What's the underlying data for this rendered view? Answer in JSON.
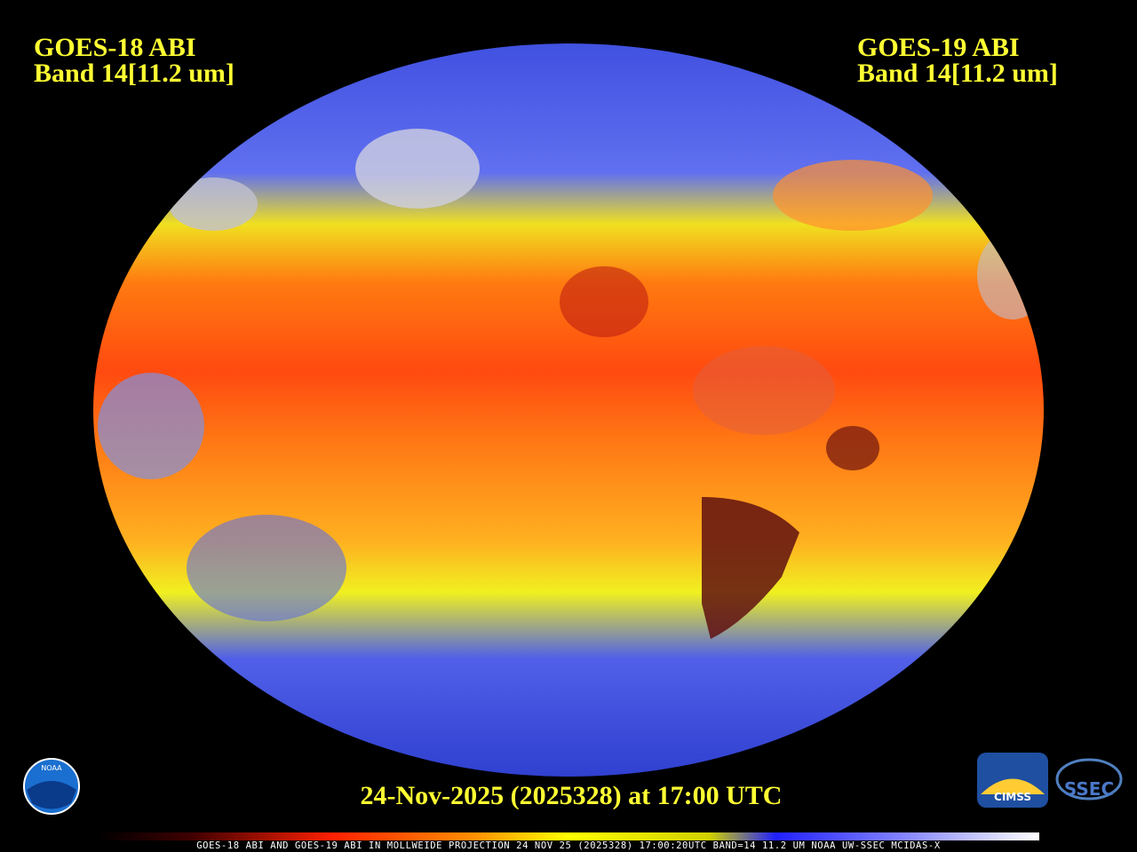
{
  "header": {
    "left": {
      "line1": "GOES-18 ABI",
      "line2": "Band 14[11.2 um]"
    },
    "right": {
      "line1": "GOES-19 ABI",
      "line2": "Band 14[11.2 um]"
    }
  },
  "timestamp": "24-Nov-2025 (2025328) at 17:00 UTC",
  "footer": "GOES-18 ABI AND GOES-19 ABI IN MOLLWEIDE PROJECTION 24 NOV 25 (2025328) 17:00:20UTC BAND=14 11.2 UM NOAA UW-SSEC MCIDAS-X",
  "logos": {
    "noaa": "NOAA",
    "cimss": "CIMSS",
    "ssec": "SSEC"
  }
}
